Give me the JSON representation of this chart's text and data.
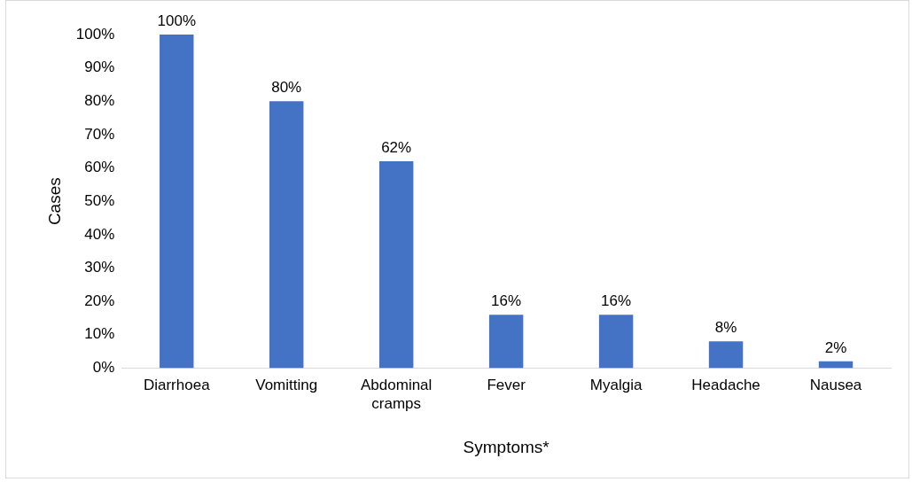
{
  "chart_data": {
    "type": "bar",
    "xlabel": "Symptoms*",
    "ylabel": "Cases",
    "categories": [
      "Diarrhoea",
      "Vomitting",
      "Abdominal cramps",
      "Fever",
      "Myalgia",
      "Headache",
      "Nausea"
    ],
    "values": [
      100,
      80,
      62,
      16,
      16,
      8,
      2
    ],
    "value_labels": [
      "100%",
      "80%",
      "62%",
      "16%",
      "16%",
      "8%",
      "2%"
    ],
    "color": "#4472c4",
    "ylim": [
      0,
      100
    ],
    "yticks": [
      {
        "value": 0,
        "label": "0%"
      },
      {
        "value": 10,
        "label": "10%"
      },
      {
        "value": 20,
        "label": "20%"
      },
      {
        "value": 30,
        "label": "30%"
      },
      {
        "value": 40,
        "label": "40%"
      },
      {
        "value": 50,
        "label": "50%"
      },
      {
        "value": 60,
        "label": "60%"
      },
      {
        "value": 70,
        "label": "70%"
      },
      {
        "value": 80,
        "label": "80%"
      },
      {
        "value": 90,
        "label": "90%"
      },
      {
        "value": 100,
        "label": "100%"
      }
    ],
    "grid": false,
    "legend": false
  }
}
